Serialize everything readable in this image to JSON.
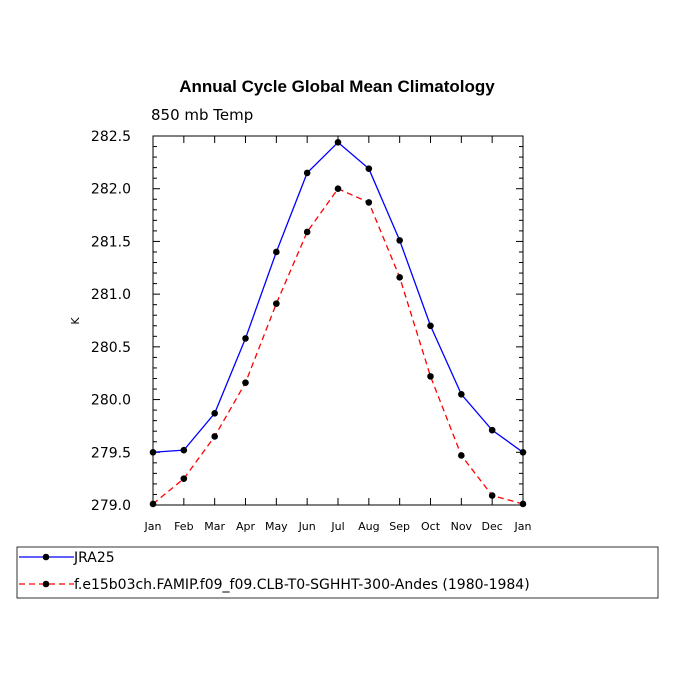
{
  "chart_data": {
    "type": "line",
    "title": "Annual Cycle Global Mean Climatology",
    "subtitle": "850 mb Temp",
    "xlabel": "",
    "ylabel": "K",
    "categories": [
      "Jan",
      "Feb",
      "Mar",
      "Apr",
      "May",
      "Jun",
      "Jul",
      "Aug",
      "Sep",
      "Oct",
      "Nov",
      "Dec",
      "Jan"
    ],
    "ylim": [
      279.0,
      282.5
    ],
    "yticks": [
      "279.0",
      "279.5",
      "280.0",
      "280.5",
      "281.0",
      "281.5",
      "282.0",
      "282.5"
    ],
    "grid": false,
    "legend_position": "bottom",
    "series": [
      {
        "name": "JRA25",
        "color": "#0000ff",
        "line_style": "solid",
        "values": [
          279.5,
          279.52,
          279.87,
          280.58,
          281.4,
          282.15,
          282.44,
          282.19,
          281.51,
          280.7,
          280.05,
          279.71,
          279.5
        ]
      },
      {
        "name": "f.e15b03ch.FAMIP.f09_f09.CLB-T0-SGHHT-300-Andes (1980-1984)",
        "color": "#ff0000",
        "line_style": "dashed",
        "values": [
          279.01,
          279.25,
          279.65,
          280.16,
          280.91,
          281.59,
          282.0,
          281.87,
          281.16,
          280.22,
          279.47,
          279.09,
          279.01
        ]
      }
    ]
  }
}
